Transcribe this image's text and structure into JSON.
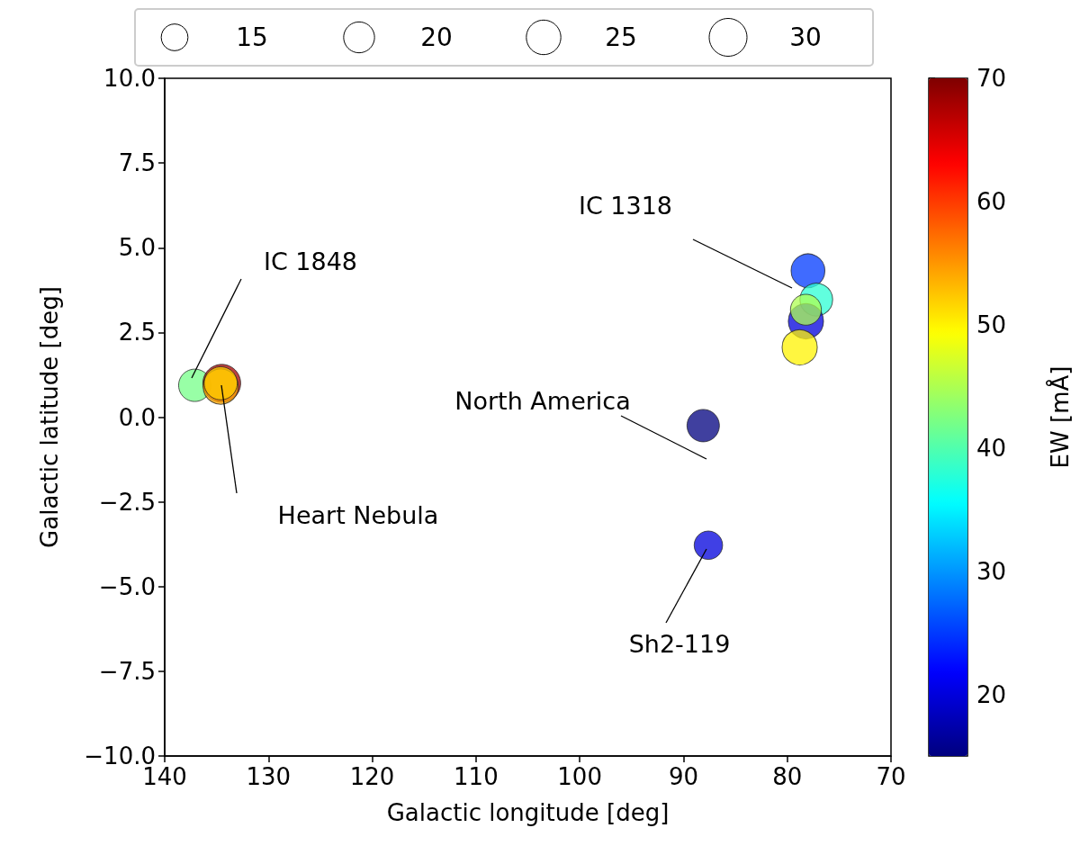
{
  "chart_data": {
    "type": "bubble",
    "xlabel": "Galactic longitude [deg]",
    "ylabel": "Galactic latitude [deg]",
    "clabel": "EW [mÅ]",
    "x": [
      137.1,
      134.5,
      134.6,
      134.6,
      78.0,
      77.2,
      78.2,
      78.2,
      78.8,
      88.1,
      87.6
    ],
    "values": [
      0.94,
      1.0,
      0.9,
      1.0,
      4.32,
      3.47,
      2.83,
      3.17,
      2.06,
      -0.25,
      -3.78
    ],
    "sizes": [
      22,
      30,
      26,
      23,
      24,
      22.5,
      26,
      20,
      26,
      22,
      17
    ],
    "cvalues": [
      42,
      68,
      54,
      52,
      25,
      38,
      20,
      45,
      50,
      15,
      20
    ],
    "size_legend": [
      15,
      20,
      25,
      30
    ],
    "clim": [
      15,
      70
    ],
    "cticks": [
      20,
      30,
      40,
      50,
      60,
      70
    ],
    "xlim": [
      140,
      70
    ],
    "xticks": [
      140,
      130,
      120,
      110,
      100,
      90,
      80,
      70
    ],
    "ylim": [
      -10,
      10
    ],
    "yticks": [
      {
        "value": -10,
        "label": "−10.0"
      },
      {
        "value": -7.5,
        "label": "−7.5"
      },
      {
        "value": -5,
        "label": "−5.0"
      },
      {
        "value": -2.5,
        "label": "−2.5"
      },
      {
        "value": 0,
        "label": "0.0"
      },
      {
        "value": 2.5,
        "label": "2.5"
      },
      {
        "value": 5,
        "label": "5.0"
      },
      {
        "value": 7.5,
        "label": "7.5"
      },
      {
        "value": 10,
        "label": "10.0"
      }
    ],
    "annotations": [
      "IC 1318",
      "IC 1848",
      "North America",
      "Heart Nebula",
      "Sh2-119"
    ]
  }
}
